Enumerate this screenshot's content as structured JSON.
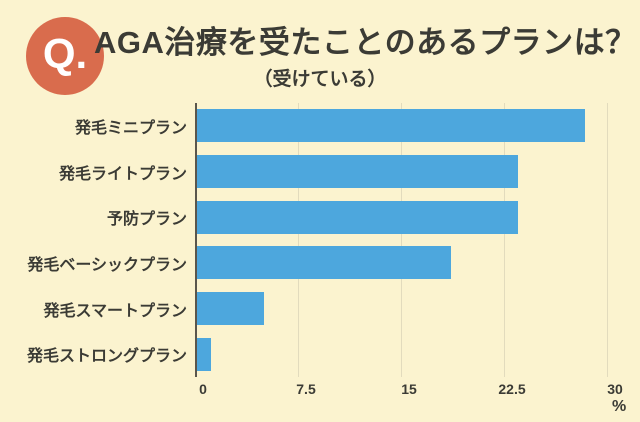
{
  "header": {
    "badge_label": "Q.",
    "title": "AGA治療を受たことのあるプランは？",
    "subtitle": "（受けている）"
  },
  "chart_data": {
    "type": "bar",
    "orientation": "horizontal",
    "title": "AGA治療を受たことのあるプランは？",
    "subtitle": "（受けている）",
    "categories": [
      "発毛ミニプラン",
      "発毛ライトプラン",
      "予防プラン",
      "発毛ベーシックプラン",
      "発毛スマートプラン",
      "発毛ストロングプラン"
    ],
    "values": [
      28.4,
      23.5,
      23.5,
      18.6,
      4.9,
      1.0
    ],
    "xlim": [
      0,
      30
    ],
    "xticks": [
      0,
      7.5,
      15,
      22.5,
      30
    ],
    "xtick_labels": [
      "0",
      "7.5",
      "15",
      "22.5",
      "30"
    ],
    "unit_label": "%",
    "grid": true,
    "legend": "none"
  },
  "colors": {
    "background": "#FBF3CF",
    "badge_background": "#D96C4D",
    "badge_text": "#FFFFFF",
    "title_text": "#3B3B35",
    "bar": "#4DA7DD",
    "axis_line": "#5A564C",
    "gridline": "#E2DBBD"
  }
}
